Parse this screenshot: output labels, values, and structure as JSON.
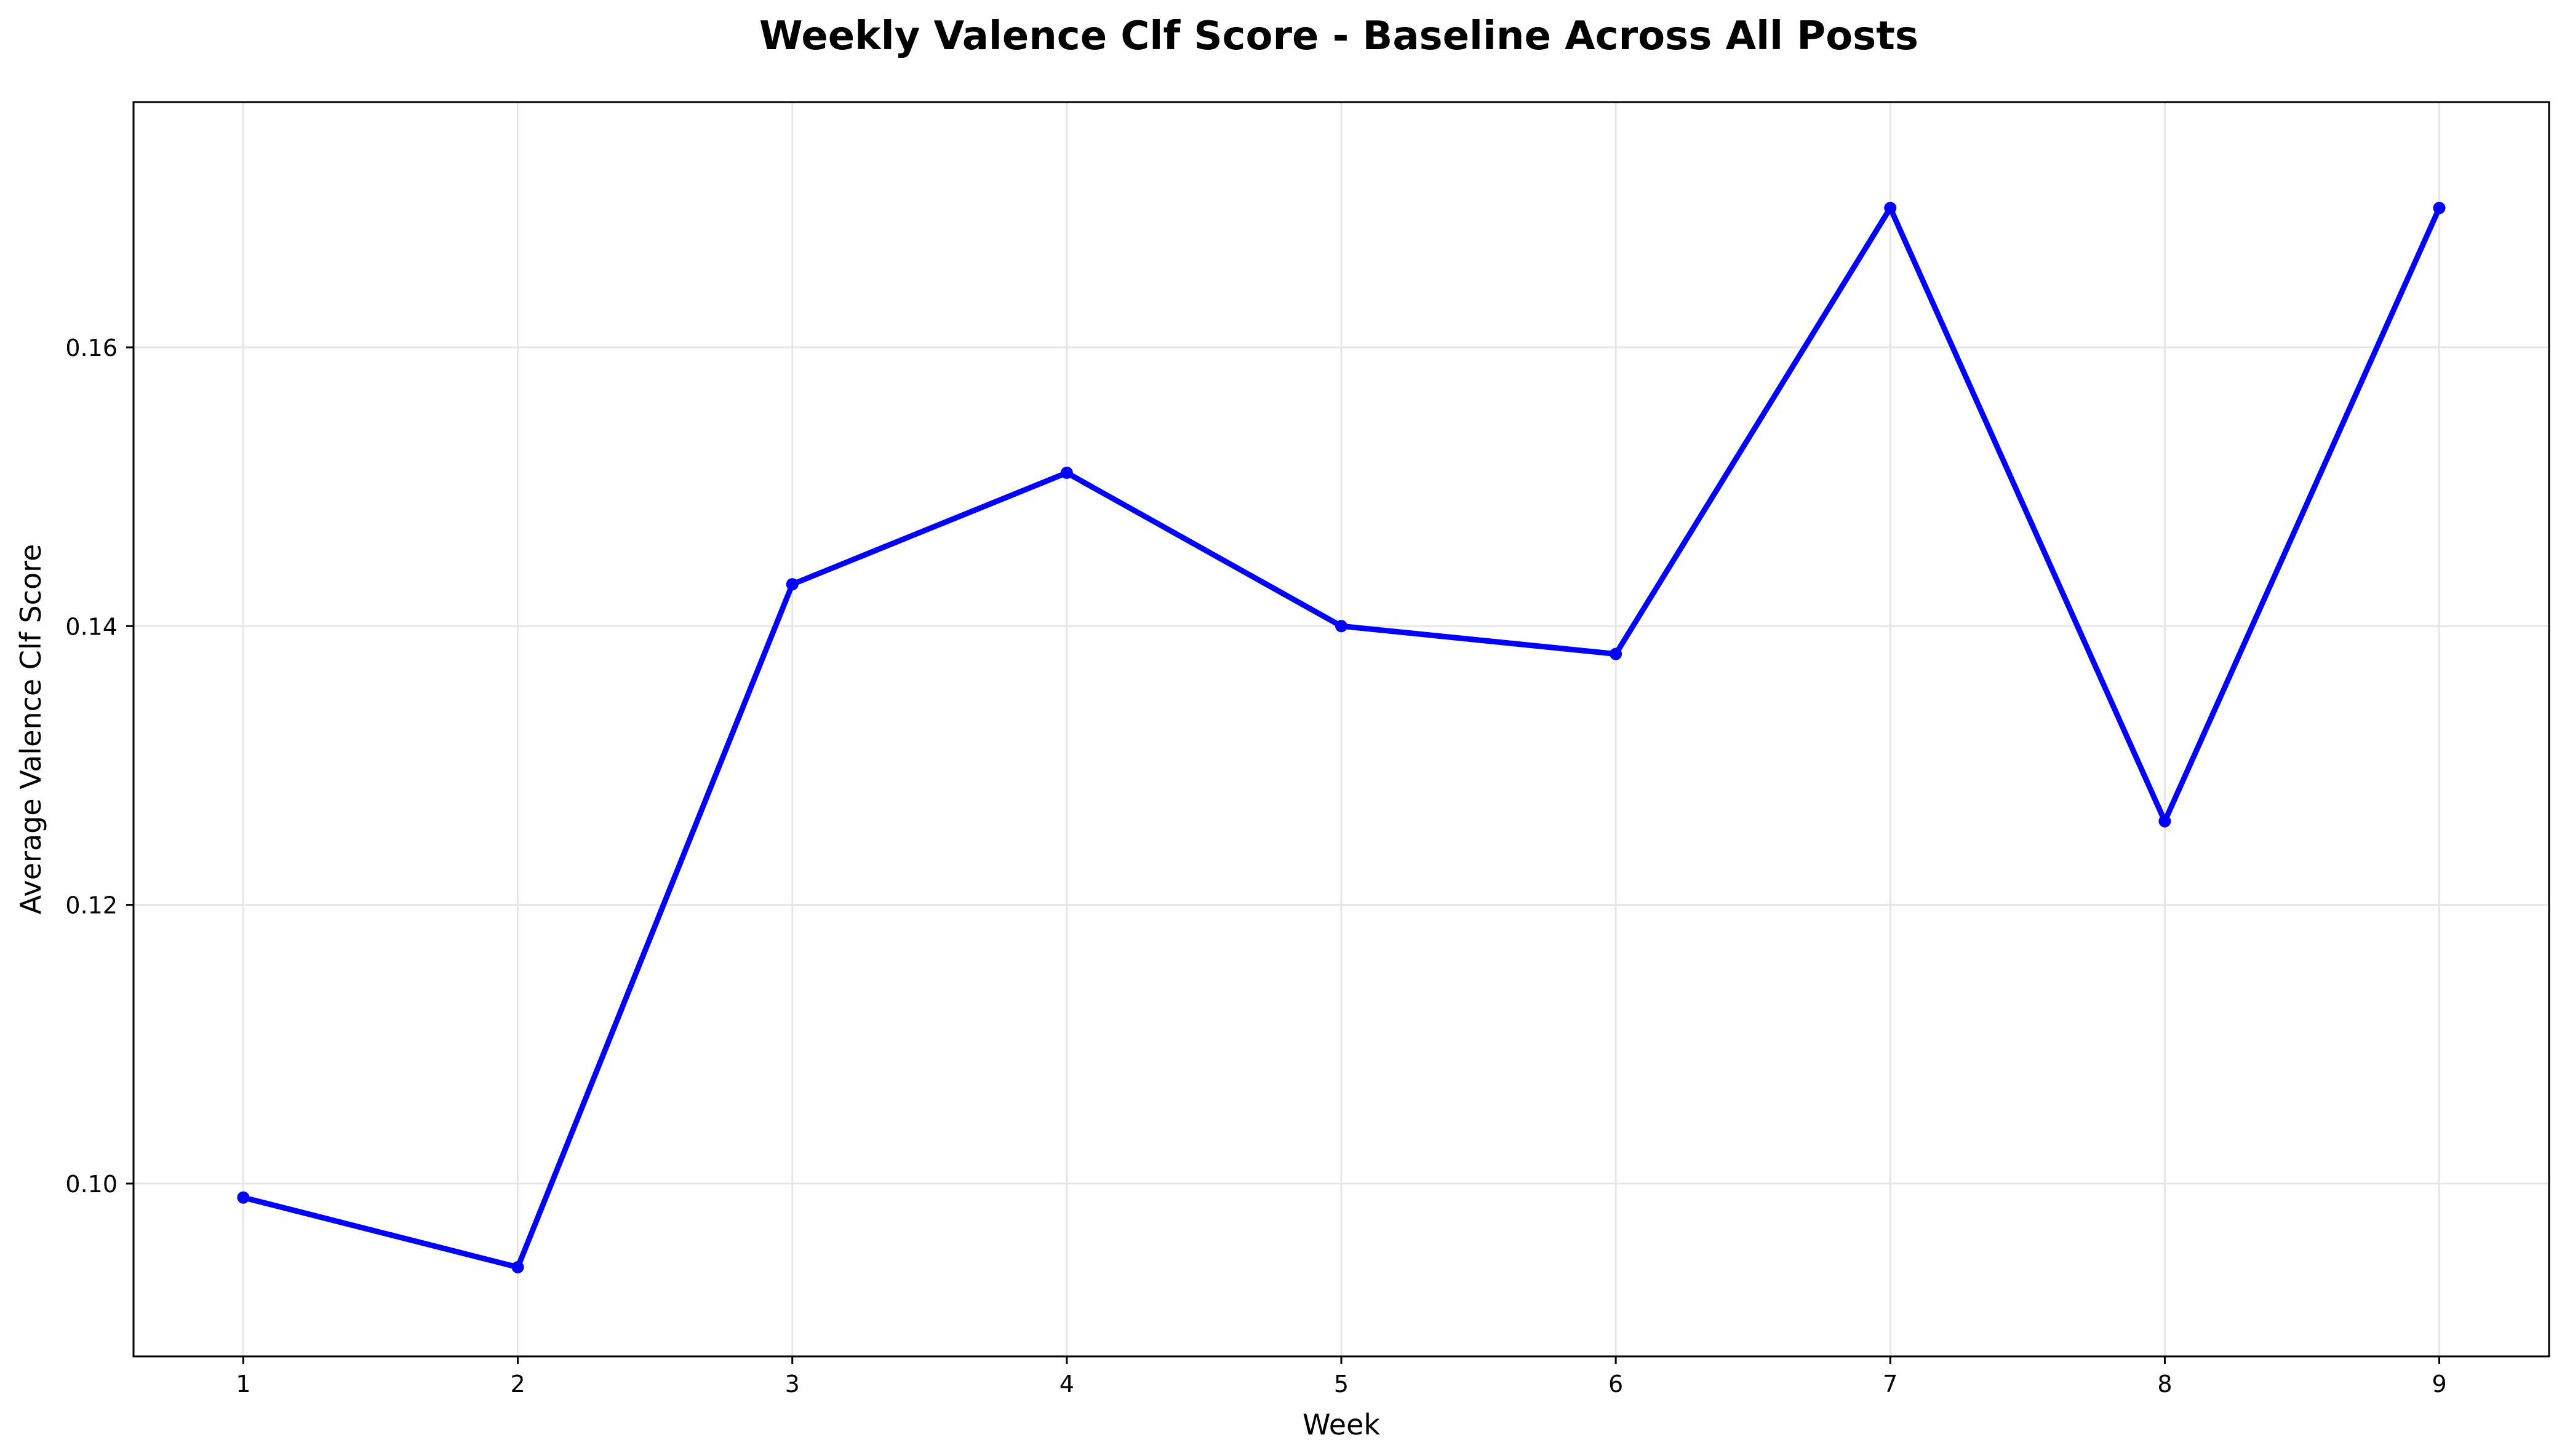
{
  "chart_data": {
    "type": "line",
    "title": "Weekly Valence Clf Score - Baseline Across All Posts",
    "xlabel": "Week",
    "ylabel": "Average Valence Clf Score",
    "x": [
      1,
      2,
      3,
      4,
      5,
      6,
      7,
      8,
      9
    ],
    "series": [
      {
        "values": [
          0.099,
          0.094,
          0.143,
          0.151,
          0.14,
          0.138,
          0.17,
          0.126,
          0.17
        ],
        "color": "#0000ff",
        "marker": "circle"
      }
    ],
    "xlim": [
      0.6,
      9.4
    ],
    "ylim": [
      0.0876,
      0.1776
    ],
    "xticks": [
      "1",
      "2",
      "3",
      "4",
      "5",
      "6",
      "7",
      "8",
      "9"
    ],
    "yticks": [
      "0.10",
      "0.12",
      "0.14",
      "0.16"
    ],
    "ytick_values": [
      0.1,
      0.12,
      0.14,
      0.16
    ],
    "grid": true,
    "grid_color": "#e6e6e6",
    "frame_color": "#000000"
  }
}
